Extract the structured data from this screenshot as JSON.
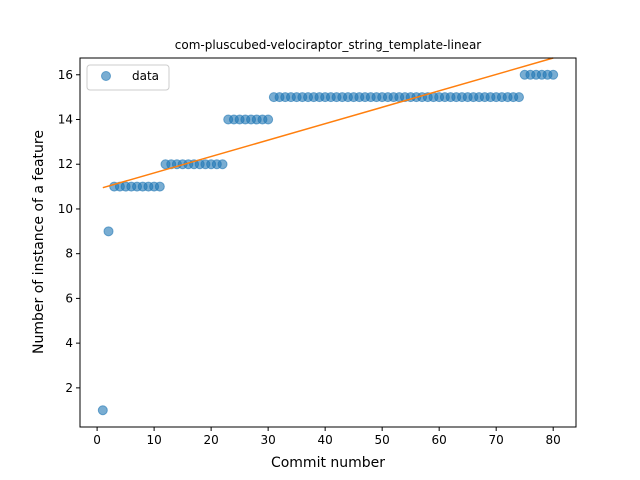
{
  "chart_data": {
    "type": "scatter",
    "title": "com-pluscubed-velociraptor_string_template-linear",
    "xlabel": "Commit number",
    "ylabel": "Number of instance of a feature",
    "xlim": [
      -3,
      84
    ],
    "ylim": [
      0.25,
      16.75
    ],
    "xticks": [
      0,
      10,
      20,
      30,
      40,
      50,
      60,
      70,
      80
    ],
    "yticks": [
      2,
      4,
      6,
      8,
      10,
      12,
      14,
      16
    ],
    "grid": false,
    "legend_position": "upper left",
    "series": [
      {
        "name": "data",
        "kind": "scatter",
        "color": "#1f77b4",
        "x": [
          1,
          2,
          3,
          4,
          5,
          6,
          7,
          8,
          9,
          10,
          11,
          12,
          13,
          14,
          15,
          16,
          17,
          18,
          19,
          20,
          21,
          22,
          23,
          24,
          25,
          26,
          27,
          28,
          29,
          30,
          31,
          32,
          33,
          34,
          35,
          36,
          37,
          38,
          39,
          40,
          41,
          42,
          43,
          44,
          45,
          46,
          47,
          48,
          49,
          50,
          51,
          52,
          53,
          54,
          55,
          56,
          57,
          58,
          59,
          60,
          61,
          62,
          63,
          64,
          65,
          66,
          67,
          68,
          69,
          70,
          71,
          72,
          73,
          74,
          75,
          76,
          77,
          78,
          79,
          80
        ],
        "y": [
          1,
          9,
          11,
          11,
          11,
          11,
          11,
          11,
          11,
          11,
          11,
          12,
          12,
          12,
          12,
          12,
          12,
          12,
          12,
          12,
          12,
          12,
          14,
          14,
          14,
          14,
          14,
          14,
          14,
          14,
          15,
          15,
          15,
          15,
          15,
          15,
          15,
          15,
          15,
          15,
          15,
          15,
          15,
          15,
          15,
          15,
          15,
          15,
          15,
          15,
          15,
          15,
          15,
          15,
          15,
          15,
          15,
          15,
          15,
          15,
          15,
          15,
          15,
          15,
          15,
          15,
          15,
          15,
          15,
          15,
          15,
          15,
          15,
          15,
          16,
          16,
          16,
          16,
          16,
          16
        ]
      },
      {
        "name": "",
        "kind": "line",
        "color": "#ff7f0e",
        "x": [
          1,
          80
        ],
        "y": [
          10.95,
          16.75
        ]
      }
    ]
  }
}
